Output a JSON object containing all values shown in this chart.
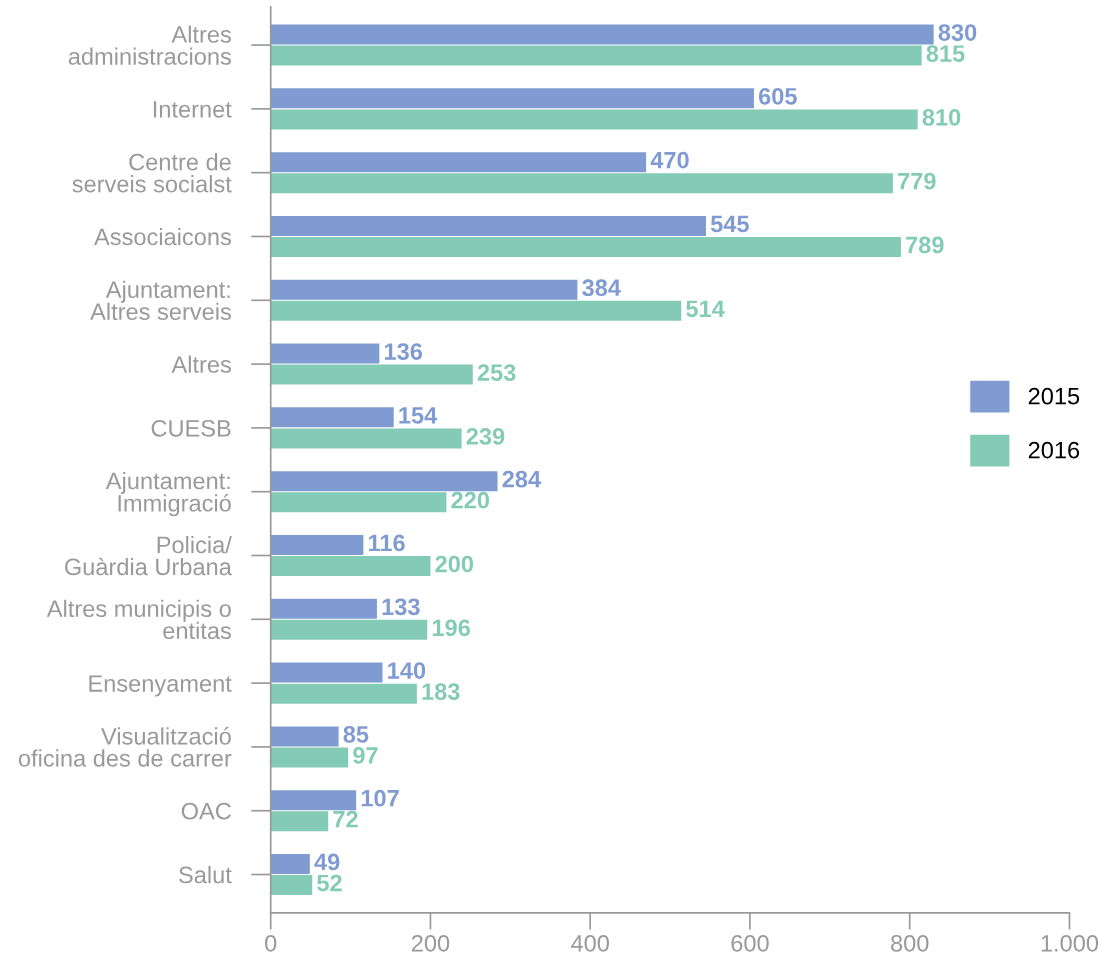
{
  "chart_data": {
    "type": "bar",
    "orientation": "horizontal",
    "categories": [
      "Altres\nadministracions",
      "Internet",
      "Centre de\nserveis socialst",
      "Associaicons",
      "Ajuntament:\nAltres serveis",
      "Altres",
      "CUESB",
      "Ajuntament:\nImmigració",
      "Policia/\nGuàrdia Urbana",
      "Altres municipis o\nentitas",
      "Ensenyament",
      "Visualització\noficina des de carrer",
      "OAC",
      "Salut"
    ],
    "series": [
      {
        "name": "2015",
        "color": "#7f9bd1",
        "values": [
          830,
          605,
          470,
          545,
          384,
          136,
          154,
          284,
          116,
          133,
          140,
          85,
          107,
          49
        ]
      },
      {
        "name": "2016",
        "color": "#84cbb5",
        "values": [
          815,
          810,
          779,
          789,
          514,
          253,
          239,
          220,
          200,
          196,
          183,
          97,
          72,
          52
        ]
      }
    ],
    "xlim": [
      0,
      1000
    ],
    "xticks": [
      0,
      200,
      400,
      600,
      800,
      {
        "value": 1000,
        "label": "1.000"
      }
    ],
    "data_labels": true,
    "grid": false,
    "legend": "right"
  }
}
